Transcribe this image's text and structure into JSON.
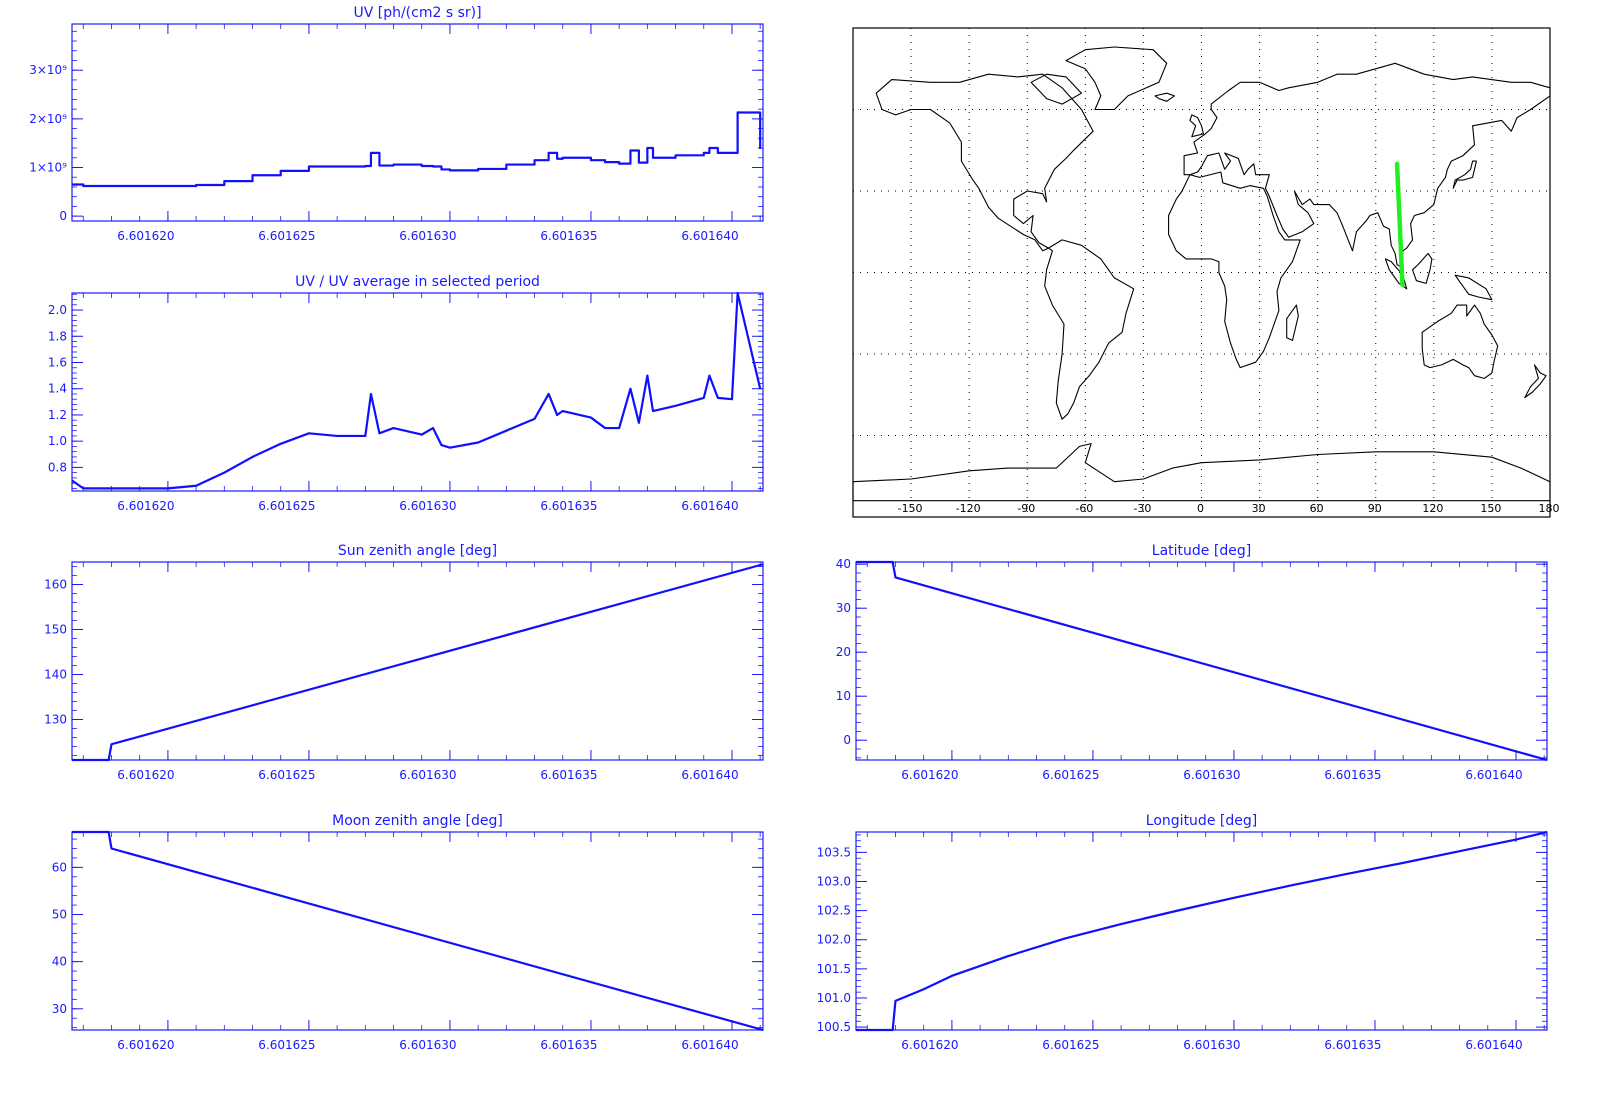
{
  "colors": {
    "axis": "#1a1aff",
    "line": "#1010ff",
    "map_line": "#000000",
    "track": "#22ee22",
    "background": "#ffffff"
  },
  "chart_data": [
    {
      "id": "uv",
      "type": "line",
      "style": "step",
      "title": "UV [ph/(cm2 s sr)]",
      "xlabel": "",
      "ylabel": "",
      "xlim": [
        6.6016166,
        6.6016411
      ],
      "ylim": [
        -100000000,
        3950000000
      ],
      "x_ticks": [
        6.60162,
        6.601625,
        6.60163,
        6.601635,
        6.60164
      ],
      "x_tick_labels": [
        "6.601620",
        "6.601625",
        "6.601630",
        "6.601635",
        "6.601640"
      ],
      "y_ticks": [
        0,
        1000000000,
        2000000000,
        3000000000
      ],
      "y_tick_labels": [
        "0",
        "1×10⁹",
        "2×10⁹",
        "3×10⁹"
      ],
      "series": [
        {
          "x": [
            6.6016166,
            6.601617,
            6.601618,
            6.601619,
            6.60162,
            6.601621,
            6.601622,
            6.601623,
            6.601624,
            6.601625,
            6.601626,
            6.601627,
            6.6016272,
            6.6016275,
            6.601628,
            6.601629,
            6.6016294,
            6.6016297,
            6.60163,
            6.601631,
            6.601632,
            6.601633,
            6.6016335,
            6.6016338,
            6.601634,
            6.601635,
            6.6016355,
            6.601636,
            6.6016364,
            6.6016367,
            6.601637,
            6.6016372,
            6.601638,
            6.601639,
            6.6016392,
            6.6016395,
            6.60164,
            6.6016402,
            6.601641
          ],
          "y": [
            650000000,
            620000000,
            620000000,
            620000000,
            620000000,
            640000000,
            720000000,
            840000000,
            930000000,
            1020000000,
            1020000000,
            1030000000,
            1300000000,
            1040000000,
            1060000000,
            1030000000,
            1020000000,
            960000000,
            940000000,
            970000000,
            1060000000,
            1150000000,
            1300000000,
            1180000000,
            1200000000,
            1150000000,
            1110000000,
            1080000000,
            1350000000,
            1100000000,
            1400000000,
            1200000000,
            1250000000,
            1300000000,
            1400000000,
            1300000000,
            1300000000,
            2130000000,
            1380000000
          ]
        }
      ]
    },
    {
      "id": "ratio",
      "type": "line",
      "title": "UV / UV average in selected period",
      "xlabel": "",
      "ylabel": "",
      "xlim": [
        6.6016166,
        6.6016411
      ],
      "ylim": [
        0.62,
        2.13
      ],
      "x_ticks": [
        6.60162,
        6.601625,
        6.60163,
        6.601635,
        6.60164
      ],
      "x_tick_labels": [
        "6.601620",
        "6.601625",
        "6.601630",
        "6.601635",
        "6.601640"
      ],
      "y_ticks": [
        0.8,
        1.0,
        1.2,
        1.4,
        1.6,
        1.8,
        2.0
      ],
      "y_tick_labels": [
        "0.8",
        "1.0",
        "1.2",
        "1.4",
        "1.6",
        "1.8",
        "2.0"
      ],
      "series": [
        {
          "x": [
            6.6016166,
            6.601617,
            6.601618,
            6.601619,
            6.60162,
            6.601621,
            6.601622,
            6.601623,
            6.601624,
            6.601625,
            6.601626,
            6.601627,
            6.6016272,
            6.6016275,
            6.601628,
            6.601629,
            6.6016294,
            6.6016297,
            6.60163,
            6.601631,
            6.601632,
            6.601633,
            6.6016335,
            6.6016338,
            6.601634,
            6.601635,
            6.6016355,
            6.601636,
            6.6016364,
            6.6016367,
            6.601637,
            6.6016372,
            6.601638,
            6.601639,
            6.6016392,
            6.6016395,
            6.60164,
            6.6016402,
            6.601641
          ],
          "y": [
            0.7,
            0.64,
            0.64,
            0.64,
            0.64,
            0.66,
            0.76,
            0.88,
            0.98,
            1.06,
            1.04,
            1.04,
            1.36,
            1.06,
            1.1,
            1.05,
            1.1,
            0.97,
            0.95,
            0.99,
            1.08,
            1.17,
            1.36,
            1.2,
            1.23,
            1.18,
            1.1,
            1.1,
            1.4,
            1.14,
            1.5,
            1.23,
            1.27,
            1.33,
            1.5,
            1.33,
            1.32,
            2.13,
            1.4
          ]
        }
      ]
    },
    {
      "id": "sun",
      "type": "line",
      "title": "Sun zenith angle [deg]",
      "xlabel": "",
      "ylabel": "",
      "xlim": [
        6.6016166,
        6.6016411
      ],
      "ylim": [
        121,
        165
      ],
      "x_ticks": [
        6.60162,
        6.601625,
        6.60163,
        6.601635,
        6.60164
      ],
      "x_tick_labels": [
        "6.601620",
        "6.601625",
        "6.601630",
        "6.601635",
        "6.601640"
      ],
      "y_ticks": [
        130,
        140,
        150,
        160
      ],
      "y_tick_labels": [
        "130",
        "140",
        "150",
        "160"
      ],
      "series": [
        {
          "x": [
            6.6016166,
            6.6016179,
            6.601618,
            6.6016411
          ],
          "y": [
            121,
            121,
            124.5,
            164.5
          ]
        }
      ]
    },
    {
      "id": "lat",
      "type": "line",
      "title": "Latitude [deg]",
      "xlabel": "",
      "ylabel": "",
      "xlim": [
        6.6016166,
        6.6016411
      ],
      "ylim": [
        -4.5,
        40.5
      ],
      "x_ticks": [
        6.60162,
        6.601625,
        6.60163,
        6.601635,
        6.60164
      ],
      "x_tick_labels": [
        "6.601620",
        "6.601625",
        "6.601630",
        "6.601635",
        "6.601640"
      ],
      "y_ticks": [
        0,
        10,
        20,
        30,
        40
      ],
      "y_tick_labels": [
        "0",
        "10",
        "20",
        "30",
        "40"
      ],
      "series": [
        {
          "x": [
            6.6016166,
            6.6016179,
            6.601618,
            6.6016411
          ],
          "y": [
            40.5,
            40.5,
            37,
            -4.5
          ]
        }
      ]
    },
    {
      "id": "moon",
      "type": "line",
      "title": "Moon zenith angle [deg]",
      "xlabel": "",
      "ylabel": "",
      "xlim": [
        6.6016166,
        6.6016411
      ],
      "ylim": [
        25.5,
        67.5
      ],
      "x_ticks": [
        6.60162,
        6.601625,
        6.60163,
        6.601635,
        6.60164
      ],
      "x_tick_labels": [
        "6.601620",
        "6.601625",
        "6.601630",
        "6.601635",
        "6.601640"
      ],
      "y_ticks": [
        30,
        40,
        50,
        60
      ],
      "y_tick_labels": [
        "30",
        "40",
        "50",
        "60"
      ],
      "series": [
        {
          "x": [
            6.6016166,
            6.6016179,
            6.601618,
            6.6016411
          ],
          "y": [
            67.5,
            67.5,
            64,
            25.5
          ]
        }
      ]
    },
    {
      "id": "lon",
      "type": "line",
      "title": "Longitude [deg]",
      "xlabel": "",
      "ylabel": "",
      "xlim": [
        6.6016166,
        6.6016411
      ],
      "ylim": [
        100.45,
        103.85
      ],
      "x_ticks": [
        6.60162,
        6.601625,
        6.60163,
        6.601635,
        6.60164
      ],
      "x_tick_labels": [
        "6.601620",
        "6.601625",
        "6.601630",
        "6.601635",
        "6.601640"
      ],
      "y_ticks": [
        100.5,
        101.0,
        101.5,
        102.0,
        102.5,
        103.0,
        103.5
      ],
      "y_tick_labels": [
        "100.5",
        "101.0",
        "101.5",
        "102.0",
        "102.5",
        "103.0",
        "103.5"
      ],
      "series": [
        {
          "x": [
            6.6016166,
            6.6016179,
            6.601618,
            6.601619,
            6.60162,
            6.601622,
            6.601624,
            6.601626,
            6.601628,
            6.60163,
            6.601632,
            6.601634,
            6.601636,
            6.601638,
            6.60164,
            6.6016411
          ],
          "y": [
            100.45,
            100.45,
            100.95,
            101.15,
            101.38,
            101.72,
            102.02,
            102.27,
            102.5,
            102.72,
            102.93,
            103.13,
            103.32,
            103.52,
            103.72,
            103.85
          ]
        }
      ]
    }
  ],
  "map": {
    "type": "map",
    "lon_ticks": [
      -150,
      -120,
      -90,
      -60,
      -30,
      0,
      30,
      60,
      90,
      120,
      150,
      180
    ],
    "lon_tick_labels": [
      "-150",
      "-120",
      "-90",
      "-60",
      "-30",
      "0",
      "30",
      "60",
      "90",
      "120",
      "150",
      "180"
    ],
    "lat_grid": [
      -60,
      -30,
      0,
      30,
      60
    ],
    "lon_range": [
      -180,
      180
    ],
    "lat_range": [
      -90,
      90
    ],
    "grid": "dotted",
    "track": {
      "lon": [
        101.0,
        103.8
      ],
      "lat": [
        40.0,
        -4.5
      ]
    }
  }
}
